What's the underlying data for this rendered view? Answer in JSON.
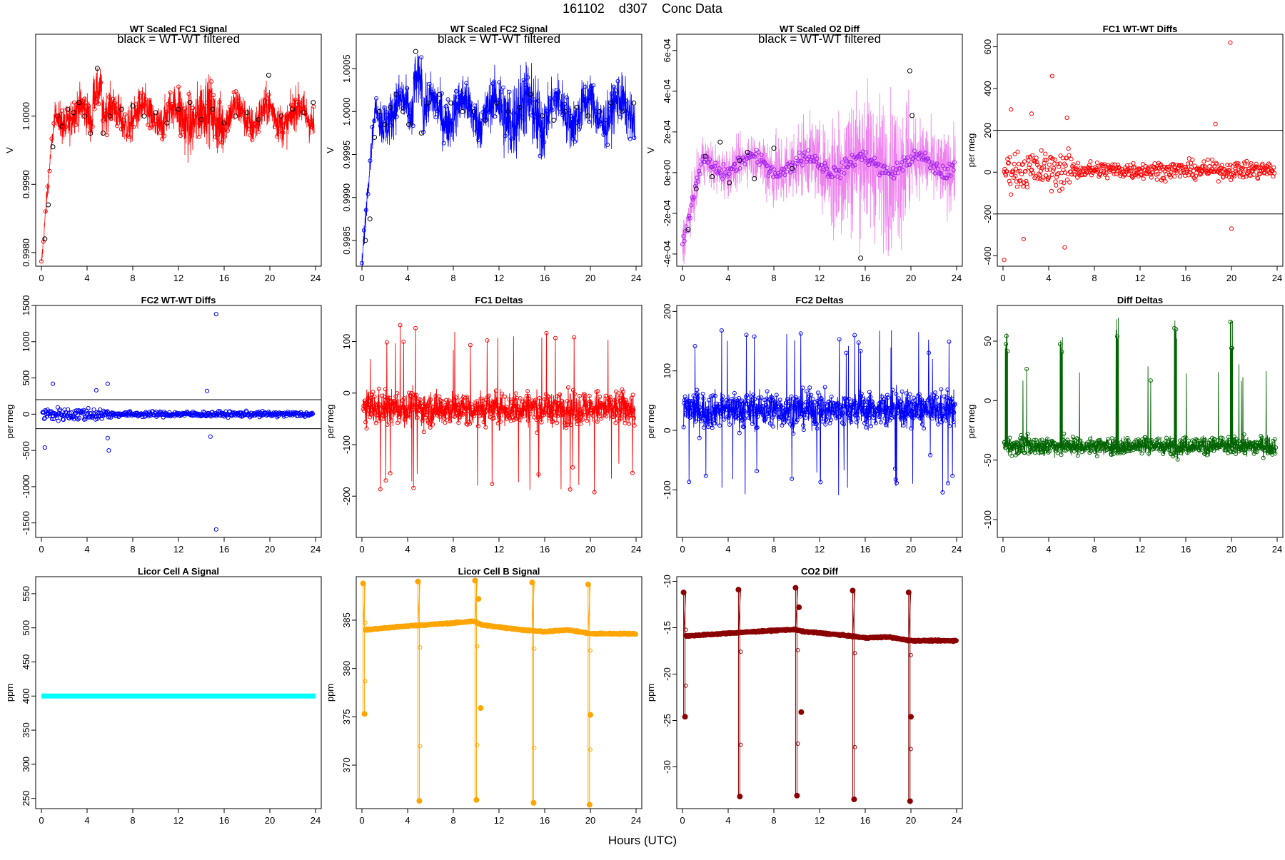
{
  "page": {
    "title": "161102    d307    Conc Data",
    "xlabel": "Hours (UTC)"
  },
  "colors": {
    "red": "#ff0000",
    "blue": "#0000ff",
    "violet": "#ee82ee",
    "purple": "#a020f0",
    "green": "#006400",
    "cyan": "#00ffff",
    "orange": "#ffa500",
    "darkred": "#8b0000",
    "black": "#000000"
  },
  "chart_data": [
    {
      "id": "wt-fc1",
      "type": "line",
      "title": "WT Scaled FC1 Signal",
      "annotation": "black = WT-WT filtered",
      "ylabel": "V",
      "xlim": [
        0,
        24
      ],
      "ylim": [
        0.9978,
        1.0012
      ],
      "xticks": [
        0,
        4,
        8,
        12,
        16,
        20,
        24
      ],
      "xtick_labels": [
        "0",
        "4",
        "8",
        "12",
        "16",
        "20",
        "24"
      ],
      "yticks": [
        0.998,
        0.999,
        1.0
      ],
      "ytick_labels": [
        "0.9980",
        "0.9990",
        "1.0000"
      ],
      "color": "red",
      "overlay_color": "black",
      "overlay_points": [
        [
          0.3,
          0.9982
        ],
        [
          0.6,
          0.9987
        ],
        [
          1.0,
          0.99955
        ],
        [
          1.4,
          1.0
        ],
        [
          1.8,
          0.99985
        ],
        [
          2.3,
          1.0001
        ],
        [
          2.8,
          1.00005
        ],
        [
          3.3,
          1.0002
        ],
        [
          3.8,
          1.0
        ],
        [
          4.3,
          0.99975
        ],
        [
          4.9,
          1.0007
        ],
        [
          5.4,
          0.99975
        ],
        [
          6.0,
          1.0
        ],
        [
          7.0,
          1.0001
        ],
        [
          8.0,
          1.00015
        ],
        [
          9.0,
          1.0
        ],
        [
          10.0,
          1.00005
        ],
        [
          11.0,
          0.9999
        ],
        [
          12.0,
          1.0001
        ],
        [
          13.0,
          1.0002
        ],
        [
          14.0,
          0.99995
        ],
        [
          15.0,
          1.0001
        ],
        [
          16.0,
          0.9999
        ],
        [
          17.0,
          1.0
        ],
        [
          18.0,
          1.00005
        ],
        [
          19.0,
          0.99995
        ],
        [
          19.9,
          1.0006
        ],
        [
          21.0,
          1.0
        ],
        [
          22.0,
          1.0001
        ],
        [
          23.0,
          1.00005
        ],
        [
          23.8,
          1.0002
        ]
      ]
    },
    {
      "id": "wt-fc2",
      "type": "line",
      "title": "WT Scaled FC2 Signal",
      "annotation": "black = WT-WT filtered",
      "ylabel": "V",
      "xlim": [
        0,
        24
      ],
      "ylim": [
        0.9982,
        1.0009
      ],
      "xticks": [
        0,
        4,
        8,
        12,
        16,
        20,
        24
      ],
      "xtick_labels": [
        "0",
        "4",
        "8",
        "12",
        "16",
        "20",
        "24"
      ],
      "yticks": [
        0.9985,
        0.999,
        0.9995,
        1.0,
        1.0005
      ],
      "ytick_labels": [
        "0.9985",
        "0.9990",
        "0.9995",
        "1.0000",
        "1.0005"
      ],
      "color": "blue",
      "overlay_color": "black",
      "overlay_points": [
        [
          0.3,
          0.9985
        ],
        [
          0.7,
          0.99875
        ],
        [
          1.1,
          0.9997
        ],
        [
          1.5,
          1.0
        ],
        [
          2.0,
          0.99985
        ],
        [
          2.5,
          1.00005
        ],
        [
          3.0,
          1.0002
        ],
        [
          3.6,
          1.0
        ],
        [
          4.1,
          0.99985
        ],
        [
          4.7,
          1.0007
        ],
        [
          5.2,
          0.99975
        ],
        [
          5.8,
          1.0001
        ],
        [
          6.8,
          1.0002
        ],
        [
          7.8,
          1.0001
        ],
        [
          8.8,
          1.0
        ],
        [
          9.8,
          1.0
        ],
        [
          10.8,
          0.9999
        ],
        [
          11.8,
          1.0001
        ],
        [
          12.8,
          1.0
        ],
        [
          13.8,
          1.00005
        ],
        [
          14.8,
          1.0002
        ],
        [
          15.8,
          0.99995
        ],
        [
          16.8,
          0.9999
        ],
        [
          17.8,
          1.0
        ],
        [
          18.8,
          1.00005
        ],
        [
          19.8,
          0.99995
        ],
        [
          20.8,
          1.0
        ],
        [
          21.8,
          1.0001
        ],
        [
          22.8,
          1.0
        ],
        [
          23.8,
          1.0001
        ]
      ]
    },
    {
      "id": "wt-o2",
      "type": "line",
      "title": "WT Scaled O2 Diff",
      "annotation": "black = WT-WT filtered",
      "ylabel": "V",
      "xlim": [
        0,
        24
      ],
      "ylim": [
        -0.00046,
        0.00068
      ],
      "xticks": [
        0,
        4,
        8,
        12,
        16,
        20,
        24
      ],
      "xtick_labels": [
        "0",
        "4",
        "8",
        "12",
        "16",
        "20",
        "24"
      ],
      "yticks": [
        -0.0004,
        -0.0002,
        0.0,
        0.0002,
        0.0004,
        0.0006
      ],
      "ytick_labels": [
        "-4e-04",
        "-2e-04",
        "0e+00",
        "2e-04",
        "4e-04",
        "6e-04"
      ],
      "color": "violet",
      "marker_color": "purple",
      "overlay_color": "black",
      "overlay_points": [
        [
          0.5,
          -0.00028
        ],
        [
          1.2,
          -8e-05
        ],
        [
          2.0,
          8e-05
        ],
        [
          2.6,
          -2e-05
        ],
        [
          3.3,
          0.00015
        ],
        [
          4.1,
          -5e-05
        ],
        [
          5.0,
          6e-05
        ],
        [
          5.7,
          0.0001
        ],
        [
          6.3,
          -3e-05
        ],
        [
          8.0,
          0.00012
        ],
        [
          9.6,
          2e-05
        ],
        [
          15.6,
          -0.00042
        ],
        [
          19.9,
          0.0005
        ],
        [
          20.1,
          0.00028
        ]
      ]
    },
    {
      "id": "fc1-wtwt",
      "type": "scatter",
      "title": "FC1 WT-WT Diffs",
      "ylabel": "per meg",
      "xlim": [
        0,
        24
      ],
      "ylim": [
        -450,
        660
      ],
      "xticks": [
        0,
        4,
        8,
        12,
        16,
        20,
        24
      ],
      "xtick_labels": [
        "0",
        "4",
        "8",
        "12",
        "16",
        "20",
        "24"
      ],
      "yticks": [
        -400,
        -200,
        0,
        200,
        400,
        600
      ],
      "ytick_labels": [
        "-400",
        "-200",
        "0",
        "200",
        "400",
        "600"
      ],
      "hlines": [
        200,
        -200
      ],
      "color": "red",
      "outliers": [
        [
          0.1,
          -420
        ],
        [
          0.7,
          300
        ],
        [
          1.8,
          -320
        ],
        [
          2.5,
          280
        ],
        [
          4.3,
          460
        ],
        [
          5.4,
          -360
        ],
        [
          5.6,
          260
        ],
        [
          19.9,
          620
        ],
        [
          20.0,
          -270
        ],
        [
          18.6,
          230
        ]
      ]
    },
    {
      "id": "fc2-wtwt",
      "type": "scatter",
      "title": "FC2 WT-WT Diffs",
      "ylabel": "per meg",
      "xlim": [
        0,
        24
      ],
      "ylim": [
        -1700,
        1500
      ],
      "xticks": [
        0,
        4,
        8,
        12,
        16,
        20,
        24
      ],
      "xtick_labels": [
        "0",
        "4",
        "8",
        "12",
        "16",
        "20",
        "24"
      ],
      "yticks": [
        -1500,
        -1000,
        -500,
        0,
        500,
        1000,
        1500
      ],
      "ytick_labels": [
        "-1500",
        "-1000",
        "-500",
        "0",
        "500",
        "1000",
        "1500"
      ],
      "hlines": [
        200,
        -200
      ],
      "color": "blue",
      "outliers": [
        [
          15.3,
          1380
        ],
        [
          15.3,
          -1590
        ],
        [
          0.3,
          -460
        ],
        [
          1.0,
          420
        ],
        [
          5.8,
          420
        ],
        [
          5.9,
          -500
        ],
        [
          5.8,
          -330
        ],
        [
          14.8,
          -310
        ],
        [
          14.5,
          320
        ],
        [
          4.8,
          330
        ]
      ]
    },
    {
      "id": "fc1-deltas",
      "type": "line",
      "title": "FC1 Deltas",
      "ylabel": "per meg",
      "xlim": [
        0,
        24
      ],
      "ylim": [
        -280,
        170
      ],
      "xticks": [
        0,
        4,
        8,
        12,
        16,
        20,
        24
      ],
      "xtick_labels": [
        "0",
        "4",
        "8",
        "12",
        "16",
        "20",
        "24"
      ],
      "yticks": [
        -200,
        -100,
        0,
        100
      ],
      "ytick_labels": [
        "-200",
        "-100",
        "0",
        "100"
      ],
      "color": "red",
      "center": -30,
      "spread": 45
    },
    {
      "id": "fc2-deltas",
      "type": "line",
      "title": "FC2 Deltas",
      "ylabel": "per meg",
      "xlim": [
        0,
        24
      ],
      "ylim": [
        -180,
        210
      ],
      "xticks": [
        0,
        4,
        8,
        12,
        16,
        20,
        24
      ],
      "xtick_labels": [
        "0",
        "4",
        "8",
        "12",
        "16",
        "20",
        "24"
      ],
      "yticks": [
        -100,
        0,
        100,
        200
      ],
      "ytick_labels": [
        "-100",
        "0",
        "100",
        "200"
      ],
      "color": "blue",
      "center": 35,
      "spread": 40
    },
    {
      "id": "diff-deltas",
      "type": "line",
      "title": "Diff Deltas",
      "ylabel": "per meg",
      "xlim": [
        0,
        24
      ],
      "ylim": [
        -115,
        80
      ],
      "xticks": [
        0,
        4,
        8,
        12,
        16,
        20,
        24
      ],
      "xtick_labels": [
        "0",
        "4",
        "8",
        "12",
        "16",
        "20",
        "24"
      ],
      "yticks": [
        -100,
        -50,
        0,
        50
      ],
      "ytick_labels": [
        "-100",
        "-50",
        "0",
        "50"
      ],
      "color": "green",
      "center": -38,
      "spread": 10,
      "spike_hours": [
        0.2,
        5.0,
        9.9,
        15.0,
        19.9
      ]
    },
    {
      "id": "licor-a",
      "type": "line",
      "title": "Licor Cell A Signal",
      "ylabel": "ppm",
      "xlim": [
        0,
        24
      ],
      "ylim": [
        235,
        575
      ],
      "xticks": [
        0,
        4,
        8,
        12,
        16,
        20,
        24
      ],
      "xtick_labels": [
        "0",
        "4",
        "8",
        "12",
        "16",
        "20",
        "24"
      ],
      "yticks": [
        250,
        300,
        350,
        400,
        450,
        500,
        550
      ],
      "ytick_labels": [
        "250",
        "300",
        "350",
        "400",
        "450",
        "500",
        "550"
      ],
      "color": "cyan",
      "value": 400
    },
    {
      "id": "licor-b",
      "type": "line",
      "title": "Licor Cell B Signal",
      "ylabel": "ppm",
      "xlim": [
        0,
        24
      ],
      "ylim": [
        365.5,
        389.5
      ],
      "xticks": [
        0,
        4,
        8,
        12,
        16,
        20,
        24
      ],
      "xtick_labels": [
        "0",
        "4",
        "8",
        "12",
        "16",
        "20",
        "24"
      ],
      "yticks": [
        370,
        375,
        380,
        385
      ],
      "ytick_labels": [
        "370",
        "375",
        "380",
        "385"
      ],
      "color": "orange",
      "baseline": [
        [
          0.3,
          384.0
        ],
        [
          4,
          384.4
        ],
        [
          8,
          384.7
        ],
        [
          9.8,
          384.9
        ],
        [
          10.5,
          384.5
        ],
        [
          14,
          384.0
        ],
        [
          16,
          383.8
        ],
        [
          18,
          384.0
        ],
        [
          20,
          383.6
        ],
        [
          24,
          383.6
        ]
      ],
      "spikes": [
        {
          "hour": 0.1,
          "top": 388.8,
          "bottom": 375.3
        },
        {
          "hour": 4.9,
          "top": 389.0,
          "bottom": 366.3
        },
        {
          "hour": 9.9,
          "top": 389.1,
          "bottom": 366.4
        },
        {
          "hour": 14.9,
          "top": 388.9,
          "bottom": 366.1
        },
        {
          "hour": 19.8,
          "top": 388.7,
          "bottom": 365.9
        }
      ],
      "extra_points": [
        [
          10.2,
          387.2
        ],
        [
          10.4,
          375.9
        ],
        [
          20.0,
          375.2
        ]
      ]
    },
    {
      "id": "co2-diff",
      "type": "line",
      "title": "CO2 Diff",
      "ylabel": "ppm",
      "xlim": [
        0,
        24
      ],
      "ylim": [
        -34.5,
        -9.5
      ],
      "xticks": [
        0,
        4,
        8,
        12,
        16,
        20,
        24
      ],
      "xtick_labels": [
        "0",
        "4",
        "8",
        "12",
        "16",
        "20",
        "24"
      ],
      "yticks": [
        -30,
        -25,
        -20,
        -15,
        -10
      ],
      "ytick_labels": [
        "-30",
        "-25",
        "-20",
        "-15",
        "-10"
      ],
      "color": "darkred",
      "baseline": [
        [
          0.3,
          -15.9
        ],
        [
          4,
          -15.6
        ],
        [
          8,
          -15.3
        ],
        [
          9.8,
          -15.2
        ],
        [
          10.5,
          -15.4
        ],
        [
          14,
          -15.8
        ],
        [
          16,
          -16.1
        ],
        [
          18,
          -16.0
        ],
        [
          20,
          -16.4
        ],
        [
          24,
          -16.4
        ]
      ],
      "spikes": [
        {
          "hour": 0.1,
          "top": -11.2,
          "bottom": -24.6
        },
        {
          "hour": 4.9,
          "top": -10.9,
          "bottom": -33.2
        },
        {
          "hour": 9.9,
          "top": -10.7,
          "bottom": -33.1
        },
        {
          "hour": 14.9,
          "top": -11.0,
          "bottom": -33.5
        },
        {
          "hour": 19.8,
          "top": -11.2,
          "bottom": -33.7
        }
      ],
      "extra_points": [
        [
          10.2,
          -12.8
        ],
        [
          10.4,
          -24.1
        ],
        [
          20.0,
          -24.6
        ]
      ]
    }
  ]
}
